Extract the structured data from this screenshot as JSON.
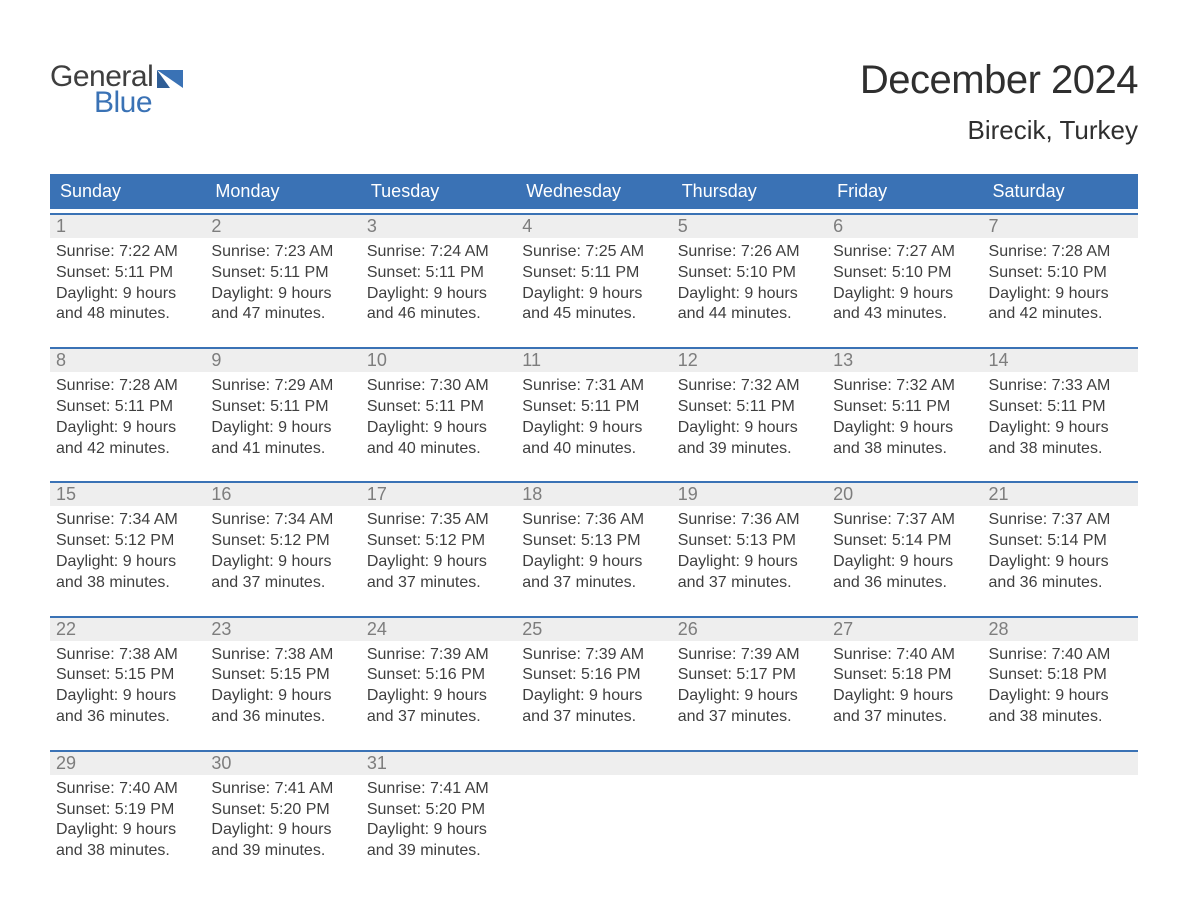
{
  "logo": {
    "text_top": "General",
    "text_bottom": "Blue",
    "accent_color": "#3a72b5",
    "text_color": "#3f3f3f"
  },
  "title": "December 2024",
  "location": "Birecik, Turkey",
  "colors": {
    "header_bg": "#3a72b5",
    "header_text": "#ffffff",
    "daynum_bg": "#eeeeee",
    "daynum_text": "#7d7d7d",
    "body_text": "#3f3f3f",
    "rule": "#3a72b5",
    "page_bg": "#ffffff"
  },
  "fonts": {
    "title_size_pt": 40,
    "location_size_pt": 26,
    "header_size_pt": 18,
    "body_size_pt": 16
  },
  "weekday_headers": [
    "Sunday",
    "Monday",
    "Tuesday",
    "Wednesday",
    "Thursday",
    "Friday",
    "Saturday"
  ],
  "labels": {
    "sunrise": "Sunrise:",
    "sunset": "Sunset:",
    "daylight": "Daylight:"
  },
  "weeks": [
    [
      {
        "day": "1",
        "sunrise": "7:22 AM",
        "sunset": "5:11 PM",
        "daylight_a": "9 hours",
        "daylight_b": "and 48 minutes."
      },
      {
        "day": "2",
        "sunrise": "7:23 AM",
        "sunset": "5:11 PM",
        "daylight_a": "9 hours",
        "daylight_b": "and 47 minutes."
      },
      {
        "day": "3",
        "sunrise": "7:24 AM",
        "sunset": "5:11 PM",
        "daylight_a": "9 hours",
        "daylight_b": "and 46 minutes."
      },
      {
        "day": "4",
        "sunrise": "7:25 AM",
        "sunset": "5:11 PM",
        "daylight_a": "9 hours",
        "daylight_b": "and 45 minutes."
      },
      {
        "day": "5",
        "sunrise": "7:26 AM",
        "sunset": "5:10 PM",
        "daylight_a": "9 hours",
        "daylight_b": "and 44 minutes."
      },
      {
        "day": "6",
        "sunrise": "7:27 AM",
        "sunset": "5:10 PM",
        "daylight_a": "9 hours",
        "daylight_b": "and 43 minutes."
      },
      {
        "day": "7",
        "sunrise": "7:28 AM",
        "sunset": "5:10 PM",
        "daylight_a": "9 hours",
        "daylight_b": "and 42 minutes."
      }
    ],
    [
      {
        "day": "8",
        "sunrise": "7:28 AM",
        "sunset": "5:11 PM",
        "daylight_a": "9 hours",
        "daylight_b": "and 42 minutes."
      },
      {
        "day": "9",
        "sunrise": "7:29 AM",
        "sunset": "5:11 PM",
        "daylight_a": "9 hours",
        "daylight_b": "and 41 minutes."
      },
      {
        "day": "10",
        "sunrise": "7:30 AM",
        "sunset": "5:11 PM",
        "daylight_a": "9 hours",
        "daylight_b": "and 40 minutes."
      },
      {
        "day": "11",
        "sunrise": "7:31 AM",
        "sunset": "5:11 PM",
        "daylight_a": "9 hours",
        "daylight_b": "and 40 minutes."
      },
      {
        "day": "12",
        "sunrise": "7:32 AM",
        "sunset": "5:11 PM",
        "daylight_a": "9 hours",
        "daylight_b": "and 39 minutes."
      },
      {
        "day": "13",
        "sunrise": "7:32 AM",
        "sunset": "5:11 PM",
        "daylight_a": "9 hours",
        "daylight_b": "and 38 minutes."
      },
      {
        "day": "14",
        "sunrise": "7:33 AM",
        "sunset": "5:11 PM",
        "daylight_a": "9 hours",
        "daylight_b": "and 38 minutes."
      }
    ],
    [
      {
        "day": "15",
        "sunrise": "7:34 AM",
        "sunset": "5:12 PM",
        "daylight_a": "9 hours",
        "daylight_b": "and 38 minutes."
      },
      {
        "day": "16",
        "sunrise": "7:34 AM",
        "sunset": "5:12 PM",
        "daylight_a": "9 hours",
        "daylight_b": "and 37 minutes."
      },
      {
        "day": "17",
        "sunrise": "7:35 AM",
        "sunset": "5:12 PM",
        "daylight_a": "9 hours",
        "daylight_b": "and 37 minutes."
      },
      {
        "day": "18",
        "sunrise": "7:36 AM",
        "sunset": "5:13 PM",
        "daylight_a": "9 hours",
        "daylight_b": "and 37 minutes."
      },
      {
        "day": "19",
        "sunrise": "7:36 AM",
        "sunset": "5:13 PM",
        "daylight_a": "9 hours",
        "daylight_b": "and 37 minutes."
      },
      {
        "day": "20",
        "sunrise": "7:37 AM",
        "sunset": "5:14 PM",
        "daylight_a": "9 hours",
        "daylight_b": "and 36 minutes."
      },
      {
        "day": "21",
        "sunrise": "7:37 AM",
        "sunset": "5:14 PM",
        "daylight_a": "9 hours",
        "daylight_b": "and 36 minutes."
      }
    ],
    [
      {
        "day": "22",
        "sunrise": "7:38 AM",
        "sunset": "5:15 PM",
        "daylight_a": "9 hours",
        "daylight_b": "and 36 minutes."
      },
      {
        "day": "23",
        "sunrise": "7:38 AM",
        "sunset": "5:15 PM",
        "daylight_a": "9 hours",
        "daylight_b": "and 36 minutes."
      },
      {
        "day": "24",
        "sunrise": "7:39 AM",
        "sunset": "5:16 PM",
        "daylight_a": "9 hours",
        "daylight_b": "and 37 minutes."
      },
      {
        "day": "25",
        "sunrise": "7:39 AM",
        "sunset": "5:16 PM",
        "daylight_a": "9 hours",
        "daylight_b": "and 37 minutes."
      },
      {
        "day": "26",
        "sunrise": "7:39 AM",
        "sunset": "5:17 PM",
        "daylight_a": "9 hours",
        "daylight_b": "and 37 minutes."
      },
      {
        "day": "27",
        "sunrise": "7:40 AM",
        "sunset": "5:18 PM",
        "daylight_a": "9 hours",
        "daylight_b": "and 37 minutes."
      },
      {
        "day": "28",
        "sunrise": "7:40 AM",
        "sunset": "5:18 PM",
        "daylight_a": "9 hours",
        "daylight_b": "and 38 minutes."
      }
    ],
    [
      {
        "day": "29",
        "sunrise": "7:40 AM",
        "sunset": "5:19 PM",
        "daylight_a": "9 hours",
        "daylight_b": "and 38 minutes."
      },
      {
        "day": "30",
        "sunrise": "7:41 AM",
        "sunset": "5:20 PM",
        "daylight_a": "9 hours",
        "daylight_b": "and 39 minutes."
      },
      {
        "day": "31",
        "sunrise": "7:41 AM",
        "sunset": "5:20 PM",
        "daylight_a": "9 hours",
        "daylight_b": "and 39 minutes."
      },
      null,
      null,
      null,
      null
    ]
  ]
}
